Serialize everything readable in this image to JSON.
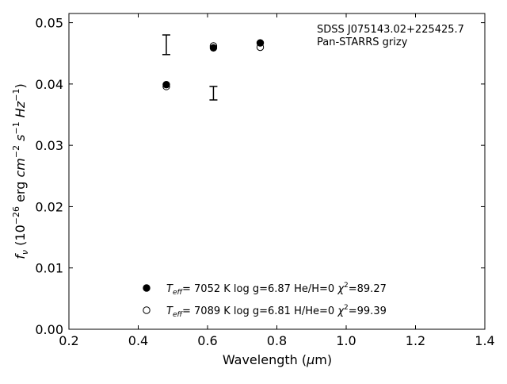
{
  "chart_data": {
    "type": "scatter",
    "title": "",
    "xlabel": "Wavelength (μm)",
    "ylabel": "f_ν (10^-26 erg cm^-2 s^-1 Hz^-1)",
    "xlim": [
      0.2,
      1.4
    ],
    "ylim": [
      0.0,
      0.0515
    ],
    "x_ticks": [
      0.2,
      0.4,
      0.6,
      0.8,
      1.0,
      1.2,
      1.4
    ],
    "x_tick_labels": [
      "0.2",
      "0.4",
      "0.6",
      "0.8",
      "1.0",
      "1.2",
      "1.4"
    ],
    "y_ticks": [
      0.0,
      0.01,
      0.02,
      0.03,
      0.04,
      0.05
    ],
    "y_tick_labels": [
      "0.00",
      "0.01",
      "0.02",
      "0.03",
      "0.04",
      "0.05"
    ],
    "grid": false,
    "legend_position": "bottom-center",
    "annotation": {
      "line1": "SDSS J075143.02+225425.7",
      "line2": "Pan-STARRS grizy"
    },
    "observed": {
      "x": [
        0.481,
        0.617
      ],
      "y": [
        0.0464,
        0.0385
      ],
      "yerr": [
        0.0016,
        0.0011
      ]
    },
    "series": [
      {
        "marker": "filled-circle",
        "x": [
          0.481,
          0.617,
          0.752
        ],
        "y": [
          0.0399,
          0.0459,
          0.0467
        ],
        "legend": {
          "teff_value": "=  7052 K  log g=6.87  He/H=0",
          "chi_value": "=89.27"
        }
      },
      {
        "marker": "open-circle",
        "x": [
          0.481,
          0.617,
          0.752
        ],
        "y": [
          0.0396,
          0.0462,
          0.046
        ],
        "legend": {
          "teff_value": "=  7089 K  log g=6.81  H/He=0",
          "chi_value": "=99.39"
        }
      }
    ]
  }
}
